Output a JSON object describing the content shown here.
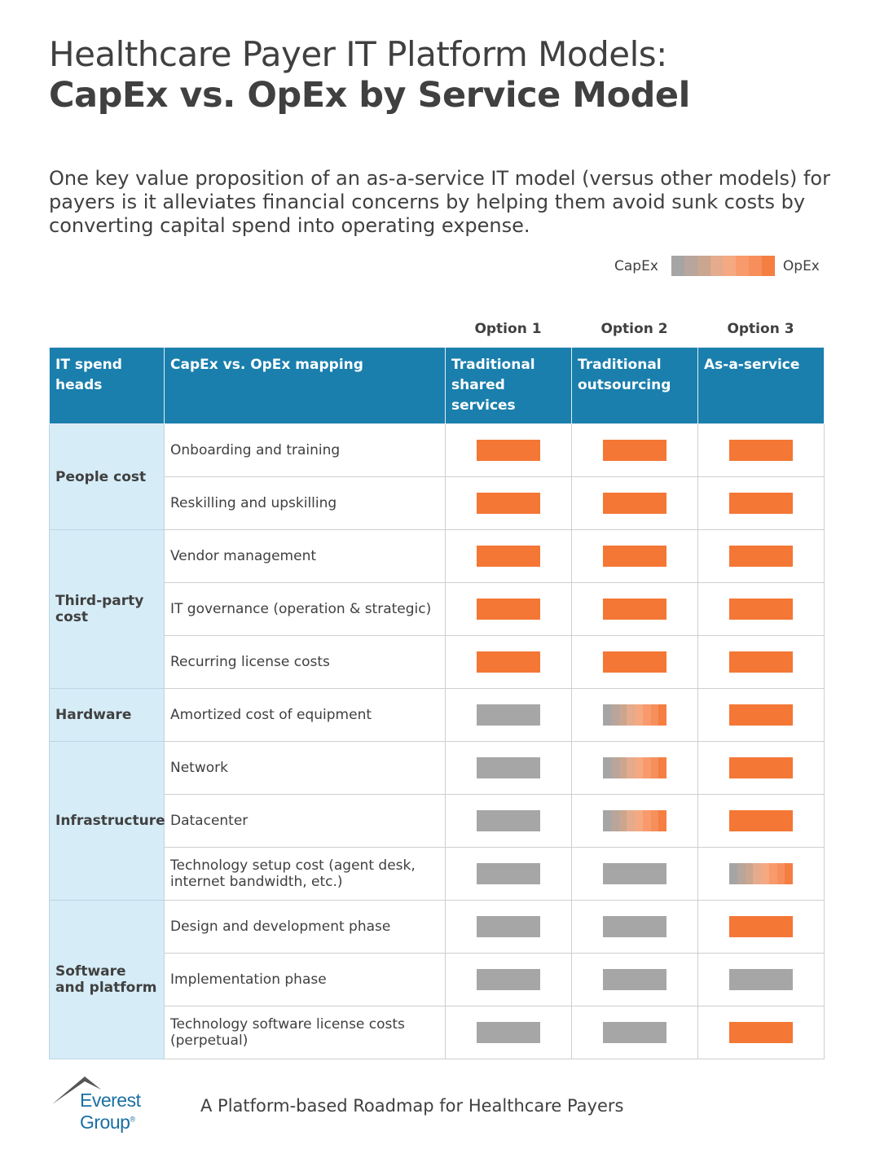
{
  "title_line1": "Healthcare Payer IT Platform Models:",
  "title_line2": "CapEx vs. OpEx by Service Model",
  "intro": "One key value proposition of an as-a-service IT model (versus other models) for payers is it alleviates financial concerns by helping them avoid sunk costs by converting capital spend into operating expense.",
  "legend": {
    "left": "CapEx",
    "right": "OpEx"
  },
  "colors": {
    "capex": "#a6a6a6",
    "opex": "#f47735",
    "header": "#1a7fad",
    "row_head": "#d6ecf7",
    "mixed": [
      "#a5a5a5",
      "#b8a59b",
      "#caa58f",
      "#e4ab8d",
      "#f5a982",
      "#f89a6b",
      "#f68f5b",
      "#f57e43"
    ]
  },
  "options": [
    "Option 1",
    "Option 2",
    "Option 3"
  ],
  "headers": [
    "IT spend heads",
    "CapEx vs. OpEx mapping",
    "Traditional shared services",
    "Traditional outsourcing",
    "As-a-service"
  ],
  "groups": [
    {
      "name": "People cost",
      "rows": [
        {
          "label": "Onboarding and training",
          "values": [
            "opex",
            "opex",
            "opex"
          ]
        },
        {
          "label": "Reskilling and upskilling",
          "values": [
            "opex",
            "opex",
            "opex"
          ]
        }
      ]
    },
    {
      "name": "Third-party cost",
      "rows": [
        {
          "label": "Vendor management",
          "values": [
            "opex",
            "opex",
            "opex"
          ]
        },
        {
          "label": "IT governance (operation & strategic)",
          "values": [
            "opex",
            "opex",
            "opex"
          ]
        },
        {
          "label": "Recurring license costs",
          "values": [
            "opex",
            "opex",
            "opex"
          ]
        }
      ]
    },
    {
      "name": "Hardware",
      "rows": [
        {
          "label": "Amortized cost of equipment",
          "values": [
            "capex",
            "mixed",
            "opex"
          ]
        }
      ]
    },
    {
      "name": "Infrastructure",
      "rows": [
        {
          "label": "Network",
          "values": [
            "capex",
            "mixed",
            "opex"
          ]
        },
        {
          "label": "Datacenter",
          "values": [
            "capex",
            "mixed",
            "opex"
          ]
        },
        {
          "label": "Technology setup cost (agent desk, internet bandwidth, etc.)",
          "values": [
            "capex",
            "capex",
            "mixed"
          ]
        }
      ]
    },
    {
      "name": "Software and platform",
      "rows": [
        {
          "label": "Design and development phase",
          "values": [
            "capex",
            "capex",
            "opex"
          ]
        },
        {
          "label": "Implementation phase",
          "values": [
            "capex",
            "capex",
            "capex"
          ]
        },
        {
          "label": "Technology software license costs (perpetual)",
          "values": [
            "capex",
            "capex",
            "opex"
          ]
        }
      ]
    }
  ],
  "footer": {
    "logo": "Everest Group",
    "text": "A Platform-based Roadmap for Healthcare Payers"
  }
}
